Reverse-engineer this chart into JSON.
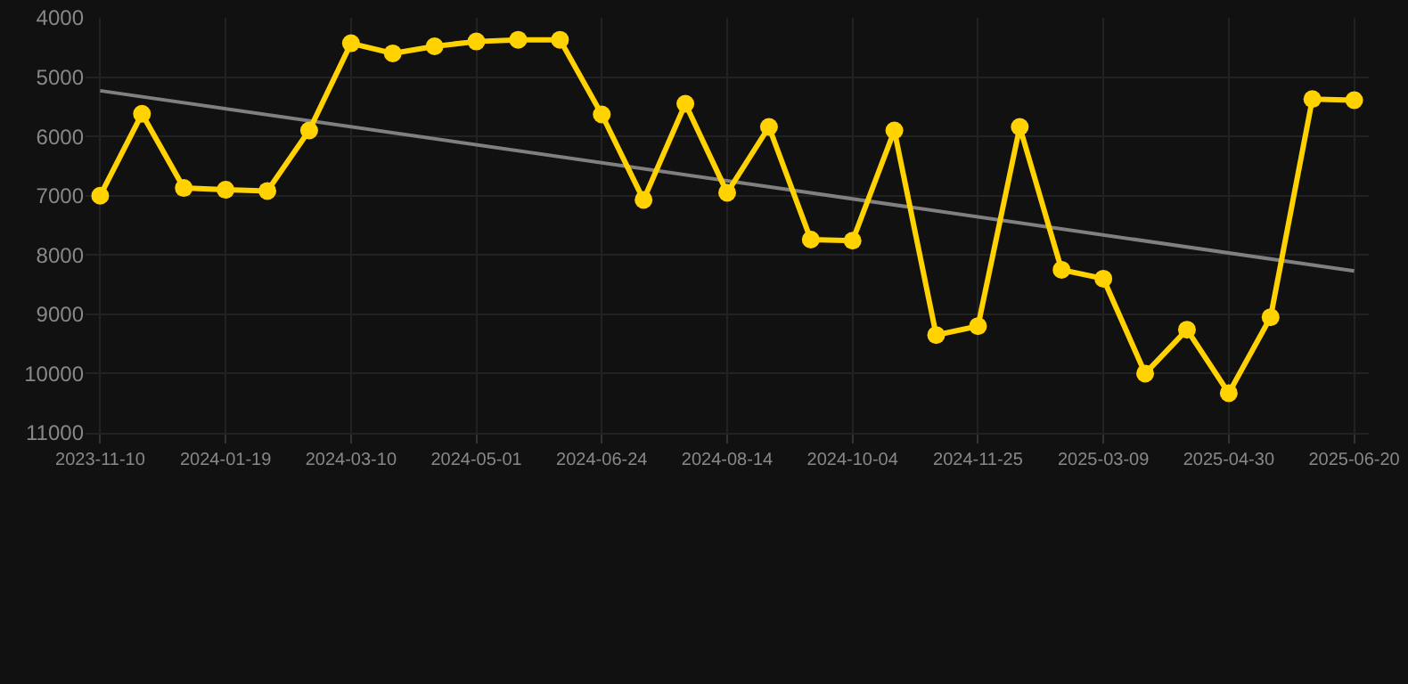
{
  "chart_data": {
    "type": "line",
    "categories": [
      "2023-11-10",
      null,
      null,
      "2024-01-19",
      null,
      null,
      "2024-03-10",
      null,
      null,
      "2024-05-01",
      null,
      null,
      "2024-06-24",
      null,
      null,
      "2024-08-14",
      null,
      null,
      "2024-10-04",
      null,
      null,
      "2024-11-25",
      null,
      null,
      "2025-03-09",
      null,
      null,
      "2025-04-30",
      null,
      null,
      "2025-06-20"
    ],
    "series": [
      {
        "color": "#ffd200",
        "marker": "circle",
        "values": [
          7000,
          5620,
          6870,
          6900,
          6920,
          5900,
          4430,
          4600,
          4480,
          4400,
          4370,
          4370,
          5630,
          7070,
          5450,
          6950,
          5840,
          7740,
          7760,
          5900,
          9350,
          9200,
          5840,
          8250,
          8400,
          10000,
          9260,
          10330,
          9050,
          5370,
          5390
        ]
      },
      {
        "type": "line",
        "color": "#808080",
        "marker": "none",
        "values": [
          5230,
          null,
          null,
          null,
          null,
          null,
          null,
          null,
          null,
          null,
          null,
          null,
          null,
          null,
          null,
          null,
          null,
          null,
          null,
          null,
          null,
          null,
          null,
          null,
          null,
          null,
          null,
          null,
          null,
          null,
          8270
        ]
      }
    ],
    "ylim": [
      11000,
      4000
    ],
    "yticks": [
      4000,
      5000,
      6000,
      7000,
      8000,
      9000,
      10000,
      11000
    ],
    "grid": true
  }
}
